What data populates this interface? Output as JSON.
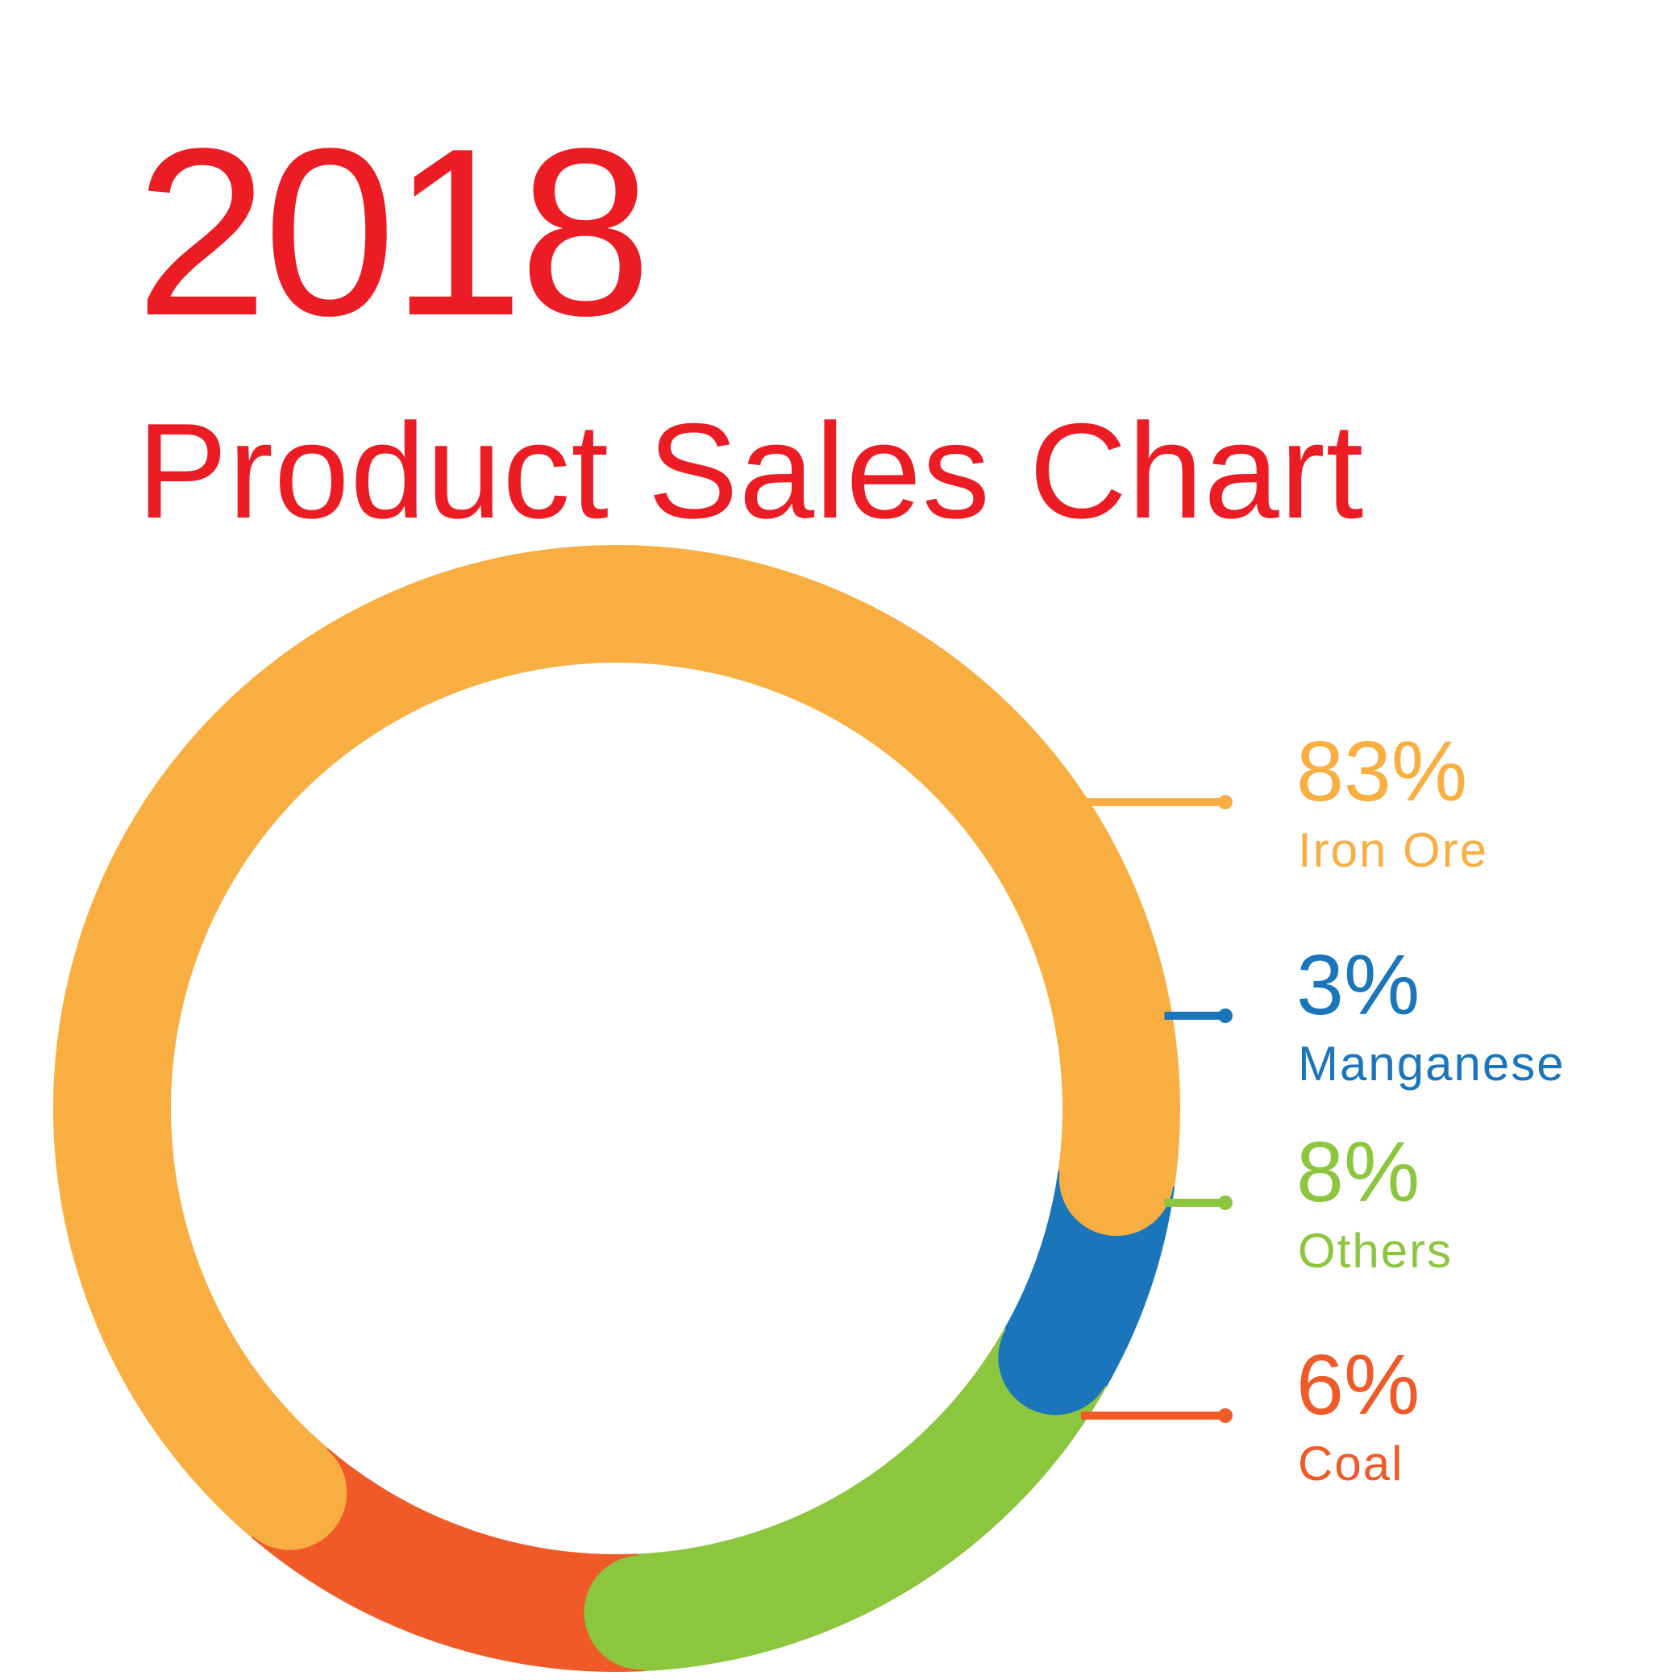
{
  "header": {
    "year": "2018",
    "subtitle": "Product Sales Chart",
    "title_color": "#ec1c24"
  },
  "chart_data": {
    "type": "pie",
    "style": "donut",
    "title": "2018 Product Sales Chart",
    "unit": "%",
    "slices": [
      {
        "name": "Iron Ore",
        "value": 83,
        "label": "83%",
        "color": "#f9ae42"
      },
      {
        "name": "Manganese",
        "value": 3,
        "label": "3%",
        "color": "#1b75bb"
      },
      {
        "name": "Others",
        "value": 8,
        "label": "8%",
        "color": "#8cc63f"
      },
      {
        "name": "Coal",
        "value": 6,
        "label": "6%",
        "color": "#ef5a28"
      }
    ],
    "legend_placement": "right"
  }
}
